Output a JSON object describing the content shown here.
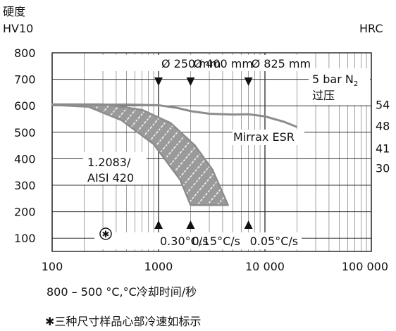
{
  "chart_data": {
    "type": "line",
    "x_scale": "log",
    "xlim": [
      100,
      100000
    ],
    "ylim": [
      50,
      800
    ],
    "y_ticks_left": [
      "800",
      "700",
      "600",
      "500",
      "400",
      "300",
      "200",
      "100"
    ],
    "y_ticks_left_values": [
      800,
      700,
      600,
      500,
      400,
      300,
      200,
      100
    ],
    "y_ticks_right": [
      "54",
      "48",
      "41",
      "30"
    ],
    "y_ticks_right_values": [
      605,
      525,
      440,
      365
    ],
    "x_ticks": [
      "100",
      "1000",
      "10 000",
      "100 000"
    ],
    "x_ticks_values": [
      100,
      1000,
      10000,
      100000
    ],
    "y_axis_label_left_line1": "硬度",
    "y_axis_label_left_line2": "HV10",
    "y_axis_label_right": "HRC",
    "xlabel": "800 – 500 °C,°C冷却时间/秒",
    "footnote_symbol": "✱",
    "footnote": "三种尺寸样品心部冷速如标示",
    "grid": true,
    "series": [
      {
        "name": "Mirrax ESR",
        "color": "#8c8c8c",
        "x": [
          100,
          500,
          1000,
          1500,
          2000,
          3000,
          5000,
          7000,
          10000,
          15000,
          20000
        ],
        "y": [
          603,
          605,
          602,
          592,
          580,
          570,
          567,
          568,
          560,
          540,
          520
        ]
      }
    ],
    "bands": [
      {
        "name": "1.2083/\nAISI 420",
        "color": "#8c8c8c",
        "upper": {
          "x": [
            100,
            300,
            700,
            1300,
            2200,
            3200,
            4500
          ],
          "y": [
            606,
            606,
            585,
            535,
            450,
            360,
            225
          ]
        },
        "lower": {
          "x": [
            100,
            220,
            450,
            900,
            1600,
            2000,
            4500
          ],
          "y": [
            603,
            596,
            545,
            455,
            320,
            225,
            225
          ]
        }
      }
    ],
    "annotations": {
      "sizes": [
        {
          "label": "Ø 250 mm",
          "x": 1000
        },
        {
          "label": "Ø 400 mm",
          "x": 2000
        },
        {
          "label": "Ø 825 mm",
          "x": 7000
        }
      ],
      "rates": [
        {
          "label": "0.30°C/s",
          "x": 1000
        },
        {
          "label": "0.15°C/s",
          "x": 2000
        },
        {
          "label": "0.05°C/s",
          "x": 7000
        }
      ],
      "quench_line1": "5 bar N",
      "quench_sub": "2",
      "quench_line2": "过压",
      "rate_marker": "✱"
    }
  }
}
